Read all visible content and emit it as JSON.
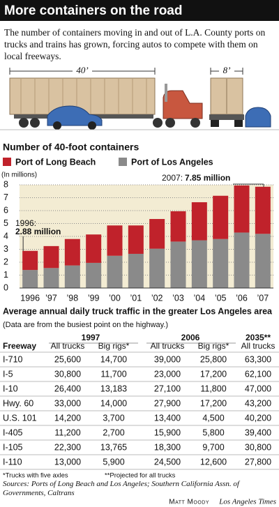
{
  "header": {
    "title": "More containers on the road",
    "intro": "The number of containers moving in and out of L.A. County ports on trucks and trains has grown, forcing autos to compete with them on local freeways."
  },
  "illustration": {
    "labels": [
      "40’",
      "8’"
    ]
  },
  "chart_data": {
    "type": "bar",
    "stacked": true,
    "title": "Number of 40-foot containers",
    "y_label": "(In millions)",
    "categories": [
      "1996",
      "’97",
      "’98",
      "’99",
      "’00",
      "’01",
      "’02",
      "’03",
      "’04",
      "’05",
      "’06",
      "’07"
    ],
    "series": [
      {
        "name": "Port of Long Beach",
        "color": "#c0222b",
        "values": [
          1.48,
          1.7,
          2.05,
          2.2,
          2.35,
          2.2,
          2.3,
          2.35,
          2.95,
          3.35,
          3.65,
          3.65
        ]
      },
      {
        "name": "Port of Los Angeles",
        "color": "#8a8a8a",
        "values": [
          1.4,
          1.55,
          1.75,
          1.95,
          2.5,
          2.65,
          3.05,
          3.6,
          3.7,
          3.8,
          4.3,
          4.2
        ]
      }
    ],
    "ylim": [
      0,
      8
    ],
    "yticks": [
      0,
      1,
      2,
      3,
      4,
      5,
      6,
      7,
      8
    ],
    "grid": true,
    "plot_background": "#f3ecd3",
    "annotations": [
      "1996:",
      "2.88 million",
      "2007:",
      "7.85 million"
    ]
  },
  "table": {
    "title": "Average annual daily truck traffic in the greater Los Angeles area",
    "subtitle": "(Data are from the busiest point on the highway.)",
    "group_headers": [
      "1997",
      "2006",
      "2035**"
    ],
    "columns": [
      "Freeway",
      "All trucks",
      "Big rigs*",
      "All trucks",
      "Big rigs*",
      "All trucks"
    ],
    "rows": [
      [
        "I-710",
        "25,600",
        "14,700",
        "39,000",
        "25,800",
        "63,300"
      ],
      [
        "I-5",
        "30,800",
        "11,700",
        "23,000",
        "17,200",
        "62,100"
      ],
      [
        "I-10",
        "26,400",
        "13,183",
        "27,100",
        "11,800",
        "47,000"
      ],
      [
        "Hwy. 60",
        "33,000",
        "14,000",
        "27,900",
        "17,200",
        "43,200"
      ],
      [
        "U.S. 101",
        "14,200",
        "3,700",
        "13,400",
        "4,500",
        "40,200"
      ],
      [
        "I-405",
        "11,200",
        "2,700",
        "15,900",
        "5,800",
        "39,400"
      ],
      [
        "I-105",
        "22,300",
        "13,765",
        "18,300",
        "9,700",
        "30,800"
      ],
      [
        "I-110",
        "13,000",
        "5,900",
        "24,500",
        "12,600",
        "27,800"
      ]
    ],
    "footnotes": [
      "*Trucks with five axles",
      "**Projected for all trucks"
    ]
  },
  "footer": {
    "sources": "Sources: Ports of Long Beach and Los Angeles; Southern California Assn. of Governments, Caltrans",
    "credit_name": "Matt Moody",
    "credit_org": "Los Angeles Times"
  }
}
